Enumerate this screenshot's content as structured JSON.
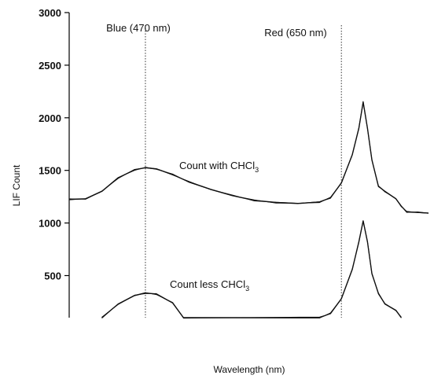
{
  "chart_data": {
    "type": "line",
    "title": "",
    "xlabel": "Wavelength (nm)",
    "ylabel": "LIF Count",
    "ylim": [
      100,
      3000
    ],
    "xlim": [
      400,
      730
    ],
    "yticks": [
      3000,
      2500,
      2000,
      1500,
      1000,
      500
    ],
    "grid": false,
    "legend": "none",
    "annotations": [
      {
        "name": "blue-marker",
        "label": "Blue (470 nm)",
        "x": 470
      },
      {
        "name": "red-marker",
        "label": "Red (650 nm)",
        "x": 650
      }
    ],
    "series_labels": [
      {
        "name": "with",
        "prefix": "Count with CHCl",
        "subscript": "3"
      },
      {
        "name": "less",
        "prefix": "Count less CHCl",
        "subscript": "3"
      }
    ],
    "series": [
      {
        "x": [
          400,
          415,
          430,
          445,
          460,
          470,
          480,
          495,
          510,
          530,
          550,
          570,
          590,
          610,
          630,
          640,
          650,
          660,
          666,
          670,
          674,
          678,
          684,
          690,
          700,
          705,
          710,
          720,
          730
        ],
        "y": [
          1225,
          1230,
          1300,
          1430,
          1505,
          1525,
          1515,
          1460,
          1390,
          1320,
          1260,
          1215,
          1195,
          1185,
          1200,
          1240,
          1380,
          1650,
          1900,
          2150,
          1900,
          1600,
          1350,
          1300,
          1230,
          1160,
          1105,
          1100,
          1095
        ]
      },
      {
        "x": [
          430,
          445,
          460,
          470,
          480,
          495,
          505,
          630,
          640,
          650,
          660,
          666,
          670,
          674,
          678,
          684,
          690,
          700,
          705
        ],
        "y": [
          100,
          230,
          310,
          335,
          325,
          240,
          100,
          100,
          140,
          280,
          560,
          820,
          1020,
          820,
          520,
          330,
          230,
          170,
          100
        ]
      }
    ]
  }
}
